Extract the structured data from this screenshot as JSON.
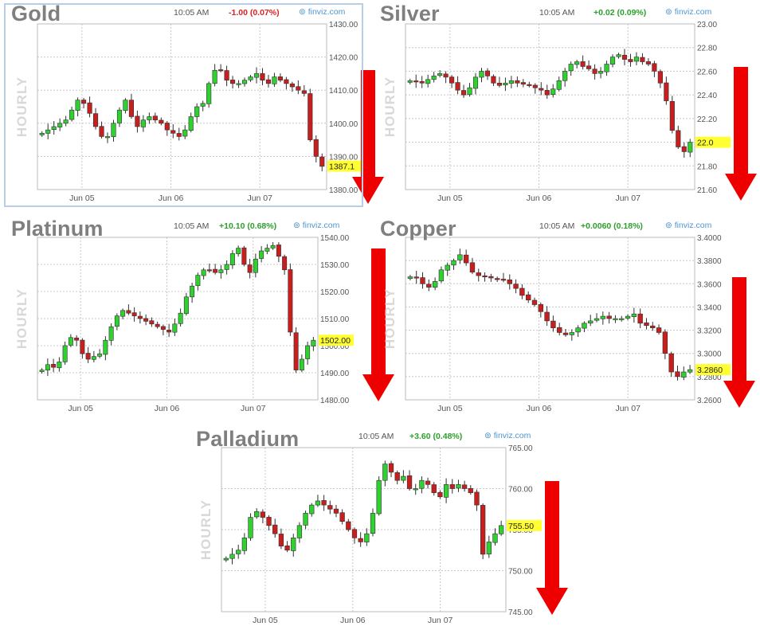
{
  "source_label": "finviz.com",
  "side_label": "HOURLY",
  "colors": {
    "up": "#2fd02f",
    "down": "#c81e1e",
    "wick": "#303030",
    "grid": "#c8c8c8",
    "arrow": "#ee0000",
    "price_tag": "#ffff33",
    "positive": "#2ca02c",
    "negative": "#dd2222"
  },
  "chart_data": [
    {
      "type": "candlestick",
      "id": "gold",
      "title": "Gold",
      "time": "10:05 AM",
      "change": "-1.00 (0.07%)",
      "change_dir": "down",
      "x_labels": [
        "Jun 05",
        "Jun 06",
        "Jun 07"
      ],
      "y_ticks": [
        "1430.00",
        "1420.00",
        "1410.00",
        "1400.00",
        "1390.00",
        "1380.00"
      ],
      "ylim": [
        1380,
        1430
      ],
      "last_label": "1387.1",
      "last_value": 1387.1,
      "path": [
        1397,
        1398,
        1399,
        1400,
        1401,
        1404,
        1407,
        1406,
        1403,
        1399,
        1396,
        1396,
        1400,
        1404,
        1407,
        1402,
        1399,
        1401,
        1402,
        1401,
        1400,
        1398,
        1397,
        1396,
        1398,
        1402,
        1405,
        1406,
        1412,
        1416,
        1416,
        1413,
        1412,
        1412,
        1413,
        1414,
        1415,
        1413,
        1412,
        1414,
        1413,
        1412,
        1411,
        1410,
        1409,
        1395,
        1390,
        1387
      ]
    },
    {
      "type": "candlestick",
      "id": "silver",
      "title": "Silver",
      "time": "10:05 AM",
      "change": "+0.02 (0.09%)",
      "change_dir": "up",
      "x_labels": [
        "Jun 05",
        "Jun 06",
        "Jun 07"
      ],
      "y_ticks": [
        "23.00",
        "22.80",
        "22.60",
        "22.40",
        "22.20",
        "22.00",
        "21.80",
        "21.60"
      ],
      "ylim": [
        21.6,
        23.0
      ],
      "last_label": "22.0",
      "last_value": 22.0,
      "path": [
        22.52,
        22.51,
        22.5,
        22.53,
        22.56,
        22.58,
        22.55,
        22.5,
        22.44,
        22.4,
        22.46,
        22.55,
        22.6,
        22.56,
        22.5,
        22.48,
        22.5,
        22.52,
        22.5,
        22.49,
        22.48,
        22.46,
        22.44,
        22.4,
        22.45,
        22.52,
        22.6,
        22.66,
        22.68,
        22.64,
        22.62,
        22.58,
        22.6,
        22.66,
        22.72,
        22.74,
        22.7,
        22.68,
        22.72,
        22.68,
        22.66,
        22.6,
        22.5,
        22.35,
        22.1,
        21.96,
        21.92,
        22.0
      ]
    },
    {
      "type": "candlestick",
      "id": "platinum",
      "title": "Platinum",
      "time": "10:05 AM",
      "change": "+10.10 (0.68%)",
      "change_dir": "up",
      "x_labels": [
        "Jun 05",
        "Jun 06",
        "Jun 07"
      ],
      "y_ticks": [
        "1540.00",
        "1530.00",
        "1520.00",
        "1510.00",
        "1500.00",
        "1490.00",
        "1480.00"
      ],
      "ylim": [
        1480,
        1540
      ],
      "last_label": "1502.00",
      "last_value": 1502,
      "path": [
        1491,
        1493,
        1492,
        1494,
        1500,
        1503,
        1502,
        1497,
        1495,
        1496,
        1497,
        1502,
        1507,
        1511,
        1513,
        1512,
        1511,
        1510,
        1509,
        1508,
        1507,
        1506,
        1505,
        1508,
        1512,
        1518,
        1522,
        1526,
        1528,
        1528,
        1527,
        1528,
        1530,
        1534,
        1536,
        1530,
        1527,
        1532,
        1535,
        1536,
        1537,
        1533,
        1528,
        1505,
        1491,
        1495,
        1500,
        1502
      ]
    },
    {
      "type": "candlestick",
      "id": "copper",
      "title": "Copper",
      "time": "10:05 AM",
      "change": "+0.0060 (0.18%)",
      "change_dir": "up",
      "x_labels": [
        "Jun 05",
        "Jun 06",
        "Jun 07"
      ],
      "y_ticks": [
        "3.4000",
        "3.3800",
        "3.3600",
        "3.3400",
        "3.3200",
        "3.3000",
        "3.2800",
        "3.2600"
      ],
      "ylim": [
        3.26,
        3.4
      ],
      "last_label": "3.2860",
      "last_value": 3.286,
      "path": [
        3.366,
        3.365,
        3.36,
        3.357,
        3.362,
        3.372,
        3.376,
        3.38,
        3.385,
        3.378,
        3.37,
        3.367,
        3.366,
        3.365,
        3.364,
        3.363,
        3.36,
        3.356,
        3.35,
        3.346,
        3.342,
        3.336,
        3.328,
        3.322,
        3.318,
        3.316,
        3.318,
        3.322,
        3.326,
        3.328,
        3.33,
        3.332,
        3.33,
        3.33,
        3.33,
        3.332,
        3.334,
        3.326,
        3.324,
        3.322,
        3.318,
        3.3,
        3.284,
        3.28,
        3.284,
        3.286
      ]
    },
    {
      "type": "candlestick",
      "id": "palladium",
      "title": "Palladium",
      "time": "10:05 AM",
      "change": "+3.60 (0.48%)",
      "change_dir": "up",
      "x_labels": [
        "Jun 05",
        "Jun 06",
        "Jun 07"
      ],
      "y_ticks": [
        "765.00",
        "760.00",
        "755.00",
        "750.00",
        "745.00"
      ],
      "ylim": [
        745,
        765
      ],
      "last_label": "755.50",
      "last_value": 755.5,
      "path": [
        751.5,
        752.0,
        752.5,
        754.0,
        756.5,
        757.2,
        756.5,
        755.5,
        754.5,
        753.0,
        752.5,
        754.0,
        755.5,
        757.0,
        758.0,
        758.5,
        758.0,
        757.5,
        757.0,
        756.0,
        755.0,
        754.0,
        753.5,
        754.5,
        757.0,
        761.0,
        763.0,
        762.0,
        761.0,
        761.5,
        760.0,
        760.0,
        761.0,
        760.5,
        759.5,
        759.0,
        760.5,
        760.0,
        760.5,
        760.0,
        759.5,
        758.0,
        752.0,
        753.5,
        754.5,
        755.5
      ]
    }
  ]
}
